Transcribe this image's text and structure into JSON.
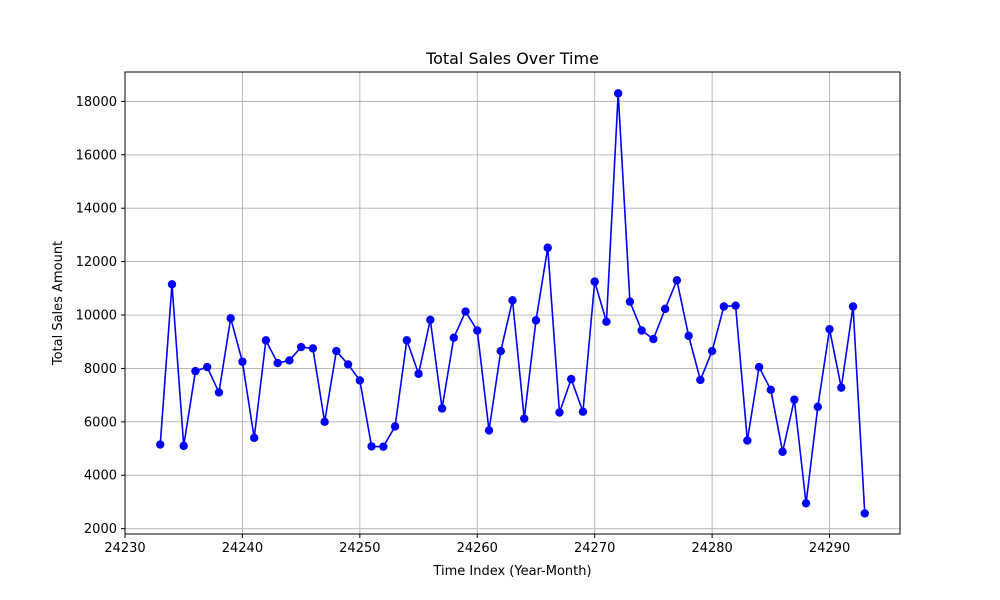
{
  "chart_data": {
    "type": "line",
    "title": "Total Sales Over Time",
    "xlabel": "Time Index (Year-Month)",
    "ylabel": "Total Sales Amount",
    "xlim": [
      24230,
      24296
    ],
    "ylim": [
      1800,
      19100
    ],
    "x_ticks": [
      24230,
      24240,
      24250,
      24260,
      24270,
      24280,
      24290
    ],
    "y_ticks": [
      2000,
      4000,
      6000,
      8000,
      10000,
      12000,
      14000,
      16000,
      18000
    ],
    "grid": true,
    "marker": "circle",
    "series": [
      {
        "color": "#0000ff",
        "x": [
          24233,
          24234,
          24235,
          24236,
          24237,
          24238,
          24239,
          24240,
          24241,
          24242,
          24243,
          24244,
          24245,
          24246,
          24247,
          24248,
          24249,
          24250,
          24251,
          24252,
          24253,
          24254,
          24255,
          24256,
          24257,
          24258,
          24259,
          24260,
          24261,
          24262,
          24263,
          24264,
          24265,
          24266,
          24267,
          24268,
          24269,
          24270,
          24271,
          24272,
          24273,
          24274,
          24275,
          24276,
          24277,
          24278,
          24279,
          24280,
          24281,
          24282,
          24283,
          24284,
          24285,
          24286,
          24287,
          24288,
          24289,
          24290,
          24291,
          24292,
          24293
        ],
        "y": [
          5150,
          11150,
          5100,
          7900,
          8050,
          7100,
          9880,
          8250,
          5400,
          9050,
          8200,
          8300,
          8800,
          8750,
          6000,
          8650,
          8150,
          7550,
          5080,
          5070,
          5830,
          9050,
          7800,
          9820,
          6500,
          9150,
          10130,
          9420,
          5680,
          8650,
          10550,
          6120,
          9800,
          12520,
          6350,
          7600,
          6380,
          11250,
          9750,
          18300,
          10500,
          9420,
          9100,
          10230,
          11300,
          9220,
          7570,
          8650,
          10320,
          10350,
          5300,
          8050,
          7200,
          4880,
          6830,
          2950,
          6560,
          9470,
          7280,
          10320,
          2570
        ]
      }
    ]
  }
}
